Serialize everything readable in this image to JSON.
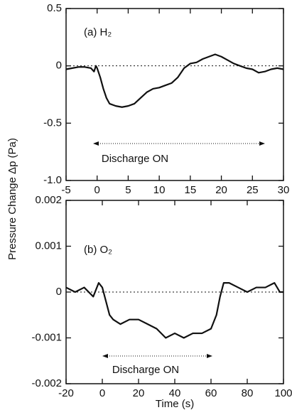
{
  "chart_data": [
    {
      "type": "line",
      "label": "(a) H₂",
      "annotation": "Discharge ON",
      "ylabel": "Pressure Change Δp (Pa)",
      "x": [
        -5,
        -4,
        -3,
        -2,
        -1,
        -0.5,
        -0.2,
        0,
        0.5,
        1,
        1.5,
        2,
        3,
        4,
        5,
        6,
        7,
        8,
        9,
        10,
        11,
        12,
        13,
        14,
        15,
        16,
        17,
        18,
        19,
        20,
        21,
        22,
        23,
        24,
        25,
        26,
        27,
        28,
        29,
        30
      ],
      "series": [
        {
          "color": "#111111",
          "values": [
            -0.03,
            -0.02,
            -0.01,
            -0.01,
            -0.02,
            -0.05,
            0.0,
            -0.02,
            -0.1,
            -0.2,
            -0.28,
            -0.33,
            -0.35,
            -0.36,
            -0.35,
            -0.33,
            -0.28,
            -0.23,
            -0.2,
            -0.19,
            -0.17,
            -0.15,
            -0.1,
            -0.02,
            0.02,
            0.03,
            0.06,
            0.08,
            0.1,
            0.08,
            0.05,
            0.02,
            0.0,
            -0.02,
            -0.03,
            -0.06,
            -0.05,
            -0.03,
            -0.02,
            -0.03
          ]
        }
      ],
      "xlim": [
        -5,
        30
      ],
      "xticks": [
        -5,
        0,
        5,
        10,
        15,
        20,
        25,
        30
      ],
      "ylim": [
        -1,
        0.5
      ],
      "yticks": [
        0.5,
        0,
        -0.5,
        {
          "value": -1,
          "label": "-1.0"
        }
      ]
    },
    {
      "type": "line",
      "label": "(b) O₂",
      "annotation": "Discharge ON",
      "xlabel": "Time (s)",
      "x": [
        -20,
        -15,
        -10,
        -5,
        -2,
        0,
        2,
        4,
        6,
        10,
        15,
        20,
        25,
        30,
        35,
        40,
        45,
        50,
        55,
        60,
        63,
        65,
        67,
        70,
        75,
        80,
        85,
        90,
        95,
        98,
        100
      ],
      "series": [
        {
          "color": "#111111",
          "values": [
            0.0001,
            0.0,
            0.0001,
            -0.0001,
            0.0002,
            0.0001,
            -0.0002,
            -0.0005,
            -0.0006,
            -0.0007,
            -0.0006,
            -0.0006,
            -0.0007,
            -0.0008,
            -0.001,
            -0.0009,
            -0.001,
            -0.0009,
            -0.0009,
            -0.0008,
            -0.0005,
            -0.0001,
            0.0002,
            0.0002,
            0.0001,
            0.0,
            0.0001,
            0.0001,
            0.0002,
            0.0,
            0.0
          ]
        }
      ],
      "xlim": [
        -20,
        100
      ],
      "xticks": [
        -20,
        0,
        20,
        40,
        60,
        80,
        100
      ],
      "ylim": [
        -0.002,
        0.002
      ],
      "yticks": [
        0.002,
        0.001,
        0,
        -0.001,
        -0.002
      ]
    }
  ]
}
